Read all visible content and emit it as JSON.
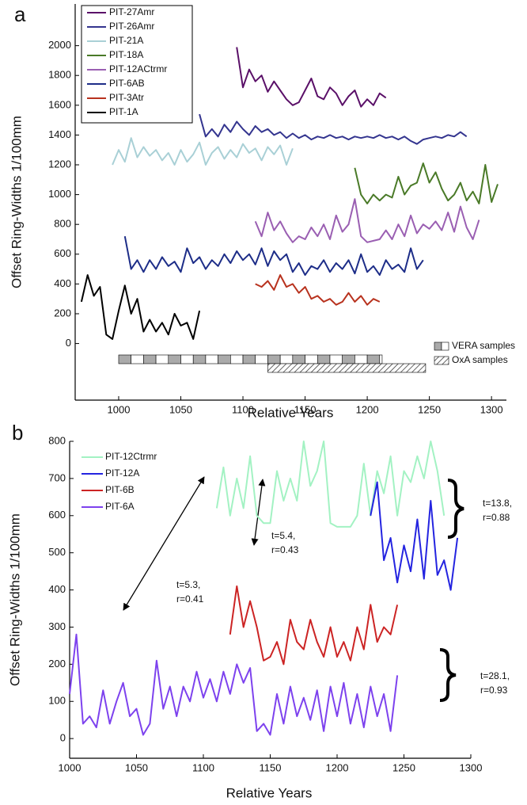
{
  "chart_data": [
    {
      "type": "line",
      "panel_label": "a",
      "xlabel": "Relative Years",
      "ylabel": "Offset Ring-Widths 1/100mm",
      "xlim": [
        965,
        1312
      ],
      "ylim": [
        -380,
        2280
      ],
      "xticks": [
        1000,
        1050,
        1100,
        1150,
        1200,
        1250,
        1300
      ],
      "yticks": [
        0,
        200,
        400,
        600,
        800,
        1000,
        1200,
        1400,
        1600,
        1800,
        2000
      ],
      "series": [
        {
          "name": "PIT-27Amr",
          "color": "#5a1068",
          "x": [
            1095,
            1100,
            1105,
            1110,
            1115,
            1120,
            1125,
            1130,
            1135,
            1140,
            1145,
            1150,
            1155,
            1160,
            1165,
            1170,
            1175,
            1180,
            1185,
            1190,
            1195,
            1200,
            1205,
            1210,
            1215
          ],
          "values": [
            1990,
            1720,
            1840,
            1760,
            1800,
            1690,
            1760,
            1700,
            1640,
            1600,
            1620,
            1700,
            1780,
            1660,
            1640,
            1720,
            1680,
            1600,
            1660,
            1700,
            1590,
            1640,
            1600,
            1680,
            1650
          ]
        },
        {
          "name": "PIT-26Amr",
          "color": "#34358f",
          "x": [
            1065,
            1070,
            1075,
            1080,
            1085,
            1090,
            1095,
            1100,
            1105,
            1110,
            1115,
            1120,
            1125,
            1130,
            1135,
            1140,
            1145,
            1150,
            1155,
            1160,
            1165,
            1170,
            1175,
            1180,
            1185,
            1190,
            1195,
            1200,
            1205,
            1210,
            1215,
            1220,
            1225,
            1230,
            1235,
            1240,
            1245,
            1250,
            1255,
            1260,
            1265,
            1270,
            1275,
            1280
          ],
          "values": [
            1540,
            1390,
            1440,
            1390,
            1470,
            1420,
            1490,
            1440,
            1400,
            1460,
            1420,
            1440,
            1400,
            1420,
            1380,
            1410,
            1380,
            1400,
            1370,
            1390,
            1380,
            1400,
            1380,
            1390,
            1370,
            1390,
            1380,
            1390,
            1380,
            1400,
            1380,
            1390,
            1370,
            1390,
            1360,
            1340,
            1370,
            1380,
            1390,
            1380,
            1400,
            1390,
            1420,
            1390
          ]
        },
        {
          "name": "PIT-21A",
          "color": "#a9d0d6",
          "x": [
            995,
            1000,
            1005,
            1010,
            1015,
            1020,
            1025,
            1030,
            1035,
            1040,
            1045,
            1050,
            1055,
            1060,
            1065,
            1070,
            1075,
            1080,
            1085,
            1090,
            1095,
            1100,
            1105,
            1110,
            1115,
            1120,
            1125,
            1130,
            1135,
            1140
          ],
          "values": [
            1200,
            1300,
            1220,
            1380,
            1250,
            1320,
            1260,
            1300,
            1230,
            1280,
            1200,
            1300,
            1220,
            1270,
            1350,
            1200,
            1280,
            1320,
            1240,
            1300,
            1250,
            1340,
            1280,
            1310,
            1230,
            1320,
            1270,
            1330,
            1200,
            1310
          ]
        },
        {
          "name": "PIT-18A",
          "color": "#4a7a28",
          "x": [
            1190,
            1195,
            1200,
            1205,
            1210,
            1215,
            1220,
            1225,
            1230,
            1235,
            1240,
            1245,
            1250,
            1255,
            1260,
            1265,
            1270,
            1275,
            1280,
            1285,
            1290,
            1295,
            1300,
            1305
          ],
          "values": [
            1180,
            1000,
            940,
            1000,
            960,
            1000,
            980,
            1120,
            1000,
            1060,
            1080,
            1210,
            1080,
            1150,
            1040,
            960,
            1000,
            1080,
            960,
            1020,
            940,
            1200,
            950,
            1070
          ]
        },
        {
          "name": "PIT-12ACtrmr",
          "color": "#9a5fb2",
          "x": [
            1110,
            1115,
            1120,
            1125,
            1130,
            1135,
            1140,
            1145,
            1150,
            1155,
            1160,
            1165,
            1170,
            1175,
            1180,
            1185,
            1190,
            1195,
            1200,
            1205,
            1210,
            1215,
            1220,
            1225,
            1230,
            1235,
            1240,
            1245,
            1250,
            1255,
            1260,
            1265,
            1270,
            1275,
            1280,
            1285,
            1290
          ],
          "values": [
            820,
            720,
            880,
            760,
            820,
            740,
            680,
            720,
            700,
            780,
            720,
            800,
            700,
            860,
            750,
            800,
            970,
            720,
            680,
            690,
            700,
            760,
            700,
            800,
            720,
            860,
            740,
            800,
            770,
            820,
            760,
            880,
            750,
            920,
            780,
            700,
            830
          ]
        },
        {
          "name": "PIT-6AB",
          "color": "#1d2d88",
          "x": [
            1005,
            1010,
            1015,
            1020,
            1025,
            1030,
            1035,
            1040,
            1045,
            1050,
            1055,
            1060,
            1065,
            1070,
            1075,
            1080,
            1085,
            1090,
            1095,
            1100,
            1105,
            1110,
            1115,
            1120,
            1125,
            1130,
            1135,
            1140,
            1145,
            1150,
            1155,
            1160,
            1165,
            1170,
            1175,
            1180,
            1185,
            1190,
            1195,
            1200,
            1205,
            1210,
            1215,
            1220,
            1225,
            1230,
            1235,
            1240,
            1245
          ],
          "values": [
            720,
            500,
            560,
            480,
            560,
            500,
            580,
            520,
            550,
            480,
            640,
            540,
            580,
            500,
            560,
            520,
            600,
            540,
            620,
            560,
            600,
            530,
            640,
            520,
            620,
            560,
            600,
            480,
            540,
            460,
            520,
            500,
            560,
            480,
            540,
            500,
            560,
            470,
            600,
            480,
            520,
            460,
            560,
            500,
            530,
            480,
            640,
            500,
            560
          ]
        },
        {
          "name": "PIT-3Atr",
          "color": "#b8321e",
          "x": [
            1110,
            1115,
            1120,
            1125,
            1130,
            1135,
            1140,
            1145,
            1150,
            1155,
            1160,
            1165,
            1170,
            1175,
            1180,
            1185,
            1190,
            1195,
            1200,
            1205,
            1210
          ],
          "values": [
            400,
            380,
            420,
            360,
            460,
            380,
            400,
            340,
            380,
            300,
            320,
            280,
            300,
            260,
            280,
            340,
            280,
            320,
            260,
            300,
            280
          ]
        },
        {
          "name": "PIT-1A",
          "color": "#000000",
          "x": [
            970,
            975,
            980,
            985,
            990,
            995,
            1000,
            1005,
            1010,
            1015,
            1020,
            1025,
            1030,
            1035,
            1040,
            1045,
            1050,
            1055,
            1060,
            1065
          ],
          "values": [
            280,
            460,
            320,
            380,
            60,
            30,
            220,
            390,
            200,
            300,
            80,
            160,
            80,
            140,
            60,
            200,
            120,
            140,
            30,
            220
          ]
        }
      ],
      "samples": [
        {
          "name": "VERA samples",
          "start": 1000,
          "end": 1212
        },
        {
          "name": "OxA samples",
          "start": 1120,
          "end": 1247
        }
      ]
    },
    {
      "type": "line",
      "panel_label": "b",
      "xlabel": "Relative Years",
      "ylabel": "Offset Ring-Widths 1/100mm",
      "xlim": [
        1000,
        1300
      ],
      "ylim": [
        -53,
        800
      ],
      "xticks": [
        1000,
        1050,
        1100,
        1150,
        1200,
        1250,
        1300
      ],
      "yticks": [
        0,
        100,
        200,
        300,
        400,
        500,
        600,
        700,
        800
      ],
      "series": [
        {
          "name": "PIT-12Ctrmr",
          "color": "#a3f2c3",
          "x": [
            1110,
            1115,
            1120,
            1125,
            1130,
            1135,
            1140,
            1145,
            1150,
            1155,
            1160,
            1165,
            1170,
            1175,
            1180,
            1185,
            1190,
            1195,
            1200,
            1205,
            1210,
            1215,
            1220,
            1225,
            1230,
            1235,
            1240,
            1245,
            1250,
            1255,
            1260,
            1265,
            1270,
            1275,
            1280
          ],
          "values": [
            620,
            730,
            600,
            700,
            620,
            760,
            600,
            580,
            580,
            720,
            640,
            700,
            640,
            800,
            680,
            720,
            800,
            580,
            570,
            570,
            570,
            600,
            740,
            600,
            720,
            660,
            760,
            600,
            720,
            690,
            760,
            700,
            800,
            720,
            600
          ]
        },
        {
          "name": "PIT-12A",
          "color": "#2424e0",
          "x": [
            1225,
            1230,
            1235,
            1240,
            1245,
            1250,
            1255,
            1260,
            1265,
            1270,
            1275,
            1280,
            1285,
            1290
          ],
          "values": [
            600,
            690,
            480,
            540,
            420,
            520,
            450,
            590,
            430,
            640,
            440,
            480,
            400,
            540
          ]
        },
        {
          "name": "PIT-6B",
          "color": "#cc2424",
          "x": [
            1120,
            1125,
            1130,
            1135,
            1140,
            1145,
            1150,
            1155,
            1160,
            1165,
            1170,
            1175,
            1180,
            1185,
            1190,
            1195,
            1200,
            1205,
            1210,
            1215,
            1220,
            1225,
            1230,
            1235,
            1240,
            1245
          ],
          "values": [
            280,
            410,
            300,
            370,
            300,
            210,
            220,
            260,
            200,
            320,
            260,
            240,
            320,
            260,
            220,
            300,
            220,
            260,
            210,
            300,
            240,
            360,
            260,
            300,
            280,
            360
          ]
        },
        {
          "name": "PIT-6A",
          "color": "#7d42ee",
          "x": [
            1000,
            1005,
            1010,
            1015,
            1020,
            1025,
            1030,
            1035,
            1040,
            1045,
            1050,
            1055,
            1060,
            1065,
            1070,
            1075,
            1080,
            1085,
            1090,
            1095,
            1100,
            1105,
            1110,
            1115,
            1120,
            1125,
            1130,
            1135,
            1140,
            1145,
            1150,
            1155,
            1160,
            1165,
            1170,
            1175,
            1180,
            1185,
            1190,
            1195,
            1200,
            1205,
            1210,
            1215,
            1220,
            1225,
            1230,
            1235,
            1240,
            1245
          ],
          "values": [
            120,
            280,
            40,
            60,
            30,
            130,
            40,
            100,
            150,
            60,
            80,
            10,
            40,
            210,
            80,
            140,
            60,
            140,
            100,
            180,
            110,
            160,
            100,
            180,
            120,
            200,
            150,
            190,
            20,
            40,
            10,
            120,
            40,
            140,
            60,
            110,
            50,
            130,
            20,
            140,
            60,
            150,
            40,
            120,
            30,
            140,
            60,
            120,
            20,
            170
          ]
        }
      ],
      "annotations": [
        [
          "t=5.3,",
          "r=0.41"
        ],
        [
          "t=5.4,",
          "r=0.43"
        ],
        [
          "t=13.8,",
          "r=0.88"
        ],
        [
          "t=28.1,",
          "r=0.93"
        ]
      ]
    }
  ]
}
